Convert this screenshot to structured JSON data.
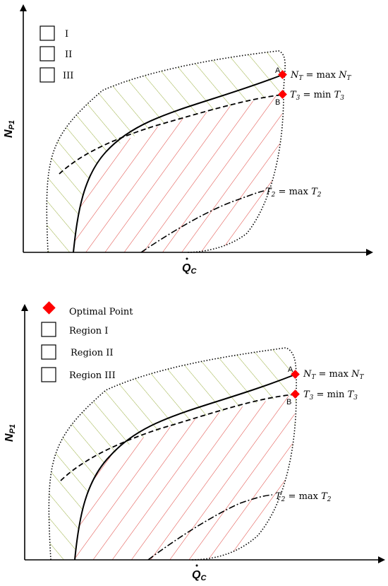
{
  "panels": [
    {
      "legend": [
        {
          "label": "I"
        },
        {
          "label": "II"
        },
        {
          "label": "III"
        }
      ],
      "y_axis_label": {
        "main": "N",
        "sub": "P1"
      },
      "x_axis_label": {
        "main": "Q",
        "sub": "C"
      },
      "point_a": "A",
      "point_b": "B",
      "ann_nt": {
        "left": "N",
        "lsub": "T",
        "mid": " = max ",
        "right": "N",
        "rsub": "T"
      },
      "ann_t3": {
        "left": "T",
        "lsub": "3",
        "mid": " = min ",
        "right": "T",
        "rsub": "3"
      },
      "ann_t2": {
        "left": "T",
        "lsub": "2",
        "mid": " = max ",
        "right": "T",
        "rsub": "2"
      }
    },
    {
      "legend": [
        {
          "label": "Optimal Point"
        },
        {
          "label": "Region I"
        },
        {
          "label": "Region II"
        },
        {
          "label": "Region III"
        }
      ],
      "y_axis_label": {
        "main": "N",
        "sub": "P1"
      },
      "x_axis_label": {
        "main": "Q",
        "sub": "C"
      },
      "point_a": "A",
      "point_b": "B",
      "ann_nt": {
        "left": "N",
        "lsub": "T",
        "mid": " = max ",
        "right": "N",
        "rsub": "T"
      },
      "ann_t3": {
        "left": "T",
        "lsub": "3",
        "mid": " = min ",
        "right": "T",
        "rsub": "3"
      },
      "ann_t2": {
        "left": "T",
        "lsub": "2",
        "mid": " = max ",
        "right": "T",
        "rsub": "2"
      }
    }
  ],
  "colors": {
    "region_i_hatch": "#e0403a",
    "region_ii_hatch": "#9ab040",
    "optimal_marker": "#ff0000",
    "axes": "#000000"
  }
}
